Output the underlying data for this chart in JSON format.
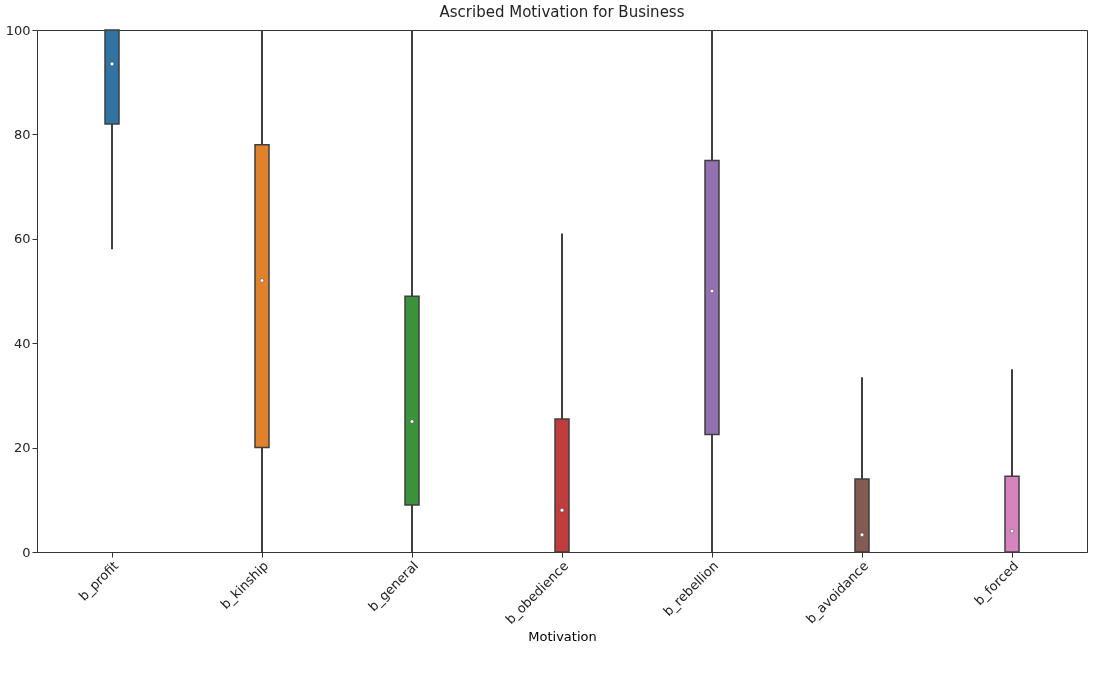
{
  "chart_data": {
    "type": "box",
    "title": "Ascribed Motivation for Business",
    "xlabel": "Motivation",
    "categories": [
      "b_profit",
      "b_kinship",
      "b_general",
      "b_obedience",
      "b_rebellion",
      "b_avoidance",
      "b_forced"
    ],
    "colors": [
      "#3274a1",
      "#e1812c",
      "#3a923a",
      "#c03d3e",
      "#9372b2",
      "#845b53",
      "#d684bd"
    ],
    "boxes": [
      {
        "low": 58,
        "q1": 82,
        "median": 93.5,
        "q3": 100,
        "high": 100
      },
      {
        "low": 0,
        "q1": 20,
        "median": 52,
        "q3": 78,
        "high": 100
      },
      {
        "low": 0,
        "q1": 9,
        "median": 25,
        "q3": 49,
        "high": 100
      },
      {
        "low": 0,
        "q1": 0,
        "median": 8,
        "q3": 25.5,
        "high": 61
      },
      {
        "low": 0,
        "q1": 22.5,
        "median": 50,
        "q3": 75,
        "high": 100
      },
      {
        "low": 0,
        "q1": 0,
        "median": 3.3,
        "q3": 14,
        "high": 33.5
      },
      {
        "low": 0,
        "q1": 0,
        "median": 4,
        "q3": 14.5,
        "high": 35
      }
    ],
    "ylim": [
      0,
      100
    ],
    "yticks": [
      0,
      20,
      40,
      60,
      80,
      100
    ],
    "grid": false
  }
}
